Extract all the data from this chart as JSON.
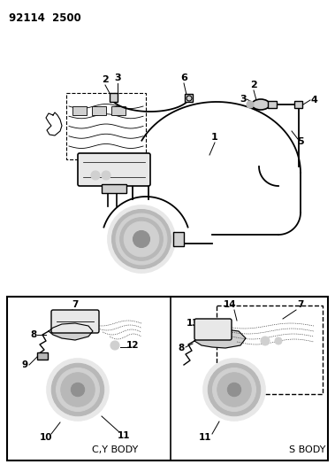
{
  "title": "92114  2500",
  "background_color": "#ffffff",
  "figsize": [
    3.79,
    5.33
  ],
  "dpi": 100,
  "black": "#000000",
  "gray1": "#d0d0d0",
  "gray2": "#b8b8b8",
  "gray3": "#e8e8e8"
}
